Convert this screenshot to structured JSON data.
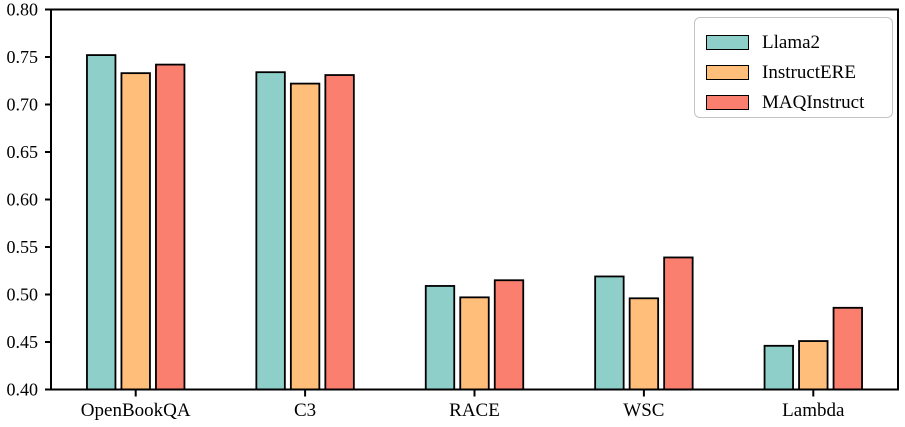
{
  "figure": {
    "background": "#ffffff",
    "axis_color": "#000000",
    "text_color": "#000000",
    "bar_edge_color": "#000000",
    "legend_border_color": "#c4c4c4"
  },
  "chart_data": {
    "type": "bar",
    "title": "",
    "xlabel": "",
    "ylabel": "",
    "categories": [
      "OpenBookQA",
      "C3",
      "RACE",
      "WSC",
      "Lambda"
    ],
    "series": [
      {
        "name": "Llama2",
        "color": "#8ECFC9",
        "values": [
          0.752,
          0.734,
          0.509,
          0.519,
          0.446
        ]
      },
      {
        "name": "InstructERE",
        "color": "#FFBE7A",
        "values": [
          0.733,
          0.722,
          0.497,
          0.496,
          0.451
        ]
      },
      {
        "name": "MAQInstruct",
        "color": "#FA7F6F",
        "values": [
          0.742,
          0.731,
          0.515,
          0.539,
          0.486
        ]
      }
    ],
    "ylim": [
      0.4,
      0.8
    ],
    "ytick_labels": [
      "0.40",
      "0.45",
      "0.50",
      "0.55",
      "0.60",
      "0.65",
      "0.70",
      "0.75",
      "0.80"
    ],
    "grid": false,
    "legend_position": "top-right"
  }
}
